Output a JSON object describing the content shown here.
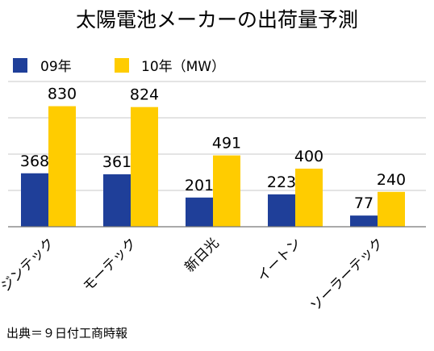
{
  "chart_data": {
    "type": "bar",
    "title": "太陽電池メーカーの出荷量予測",
    "categories": [
      "ジンテック",
      "モーテック",
      "新日光",
      "イートン",
      "ソーラーテック"
    ],
    "series": [
      {
        "name": "09年",
        "color": "#1f3f99",
        "values": [
          368,
          361,
          201,
          223,
          77
        ]
      },
      {
        "name": "10年（MW）",
        "color": "#ffcc00",
        "values": [
          830,
          824,
          491,
          400,
          240
        ]
      }
    ],
    "ylim": [
      0,
      1000
    ],
    "grid": true,
    "legend": "top-left",
    "xlabel": "",
    "ylabel": ""
  },
  "source_note": "出典＝９日付工商時報"
}
